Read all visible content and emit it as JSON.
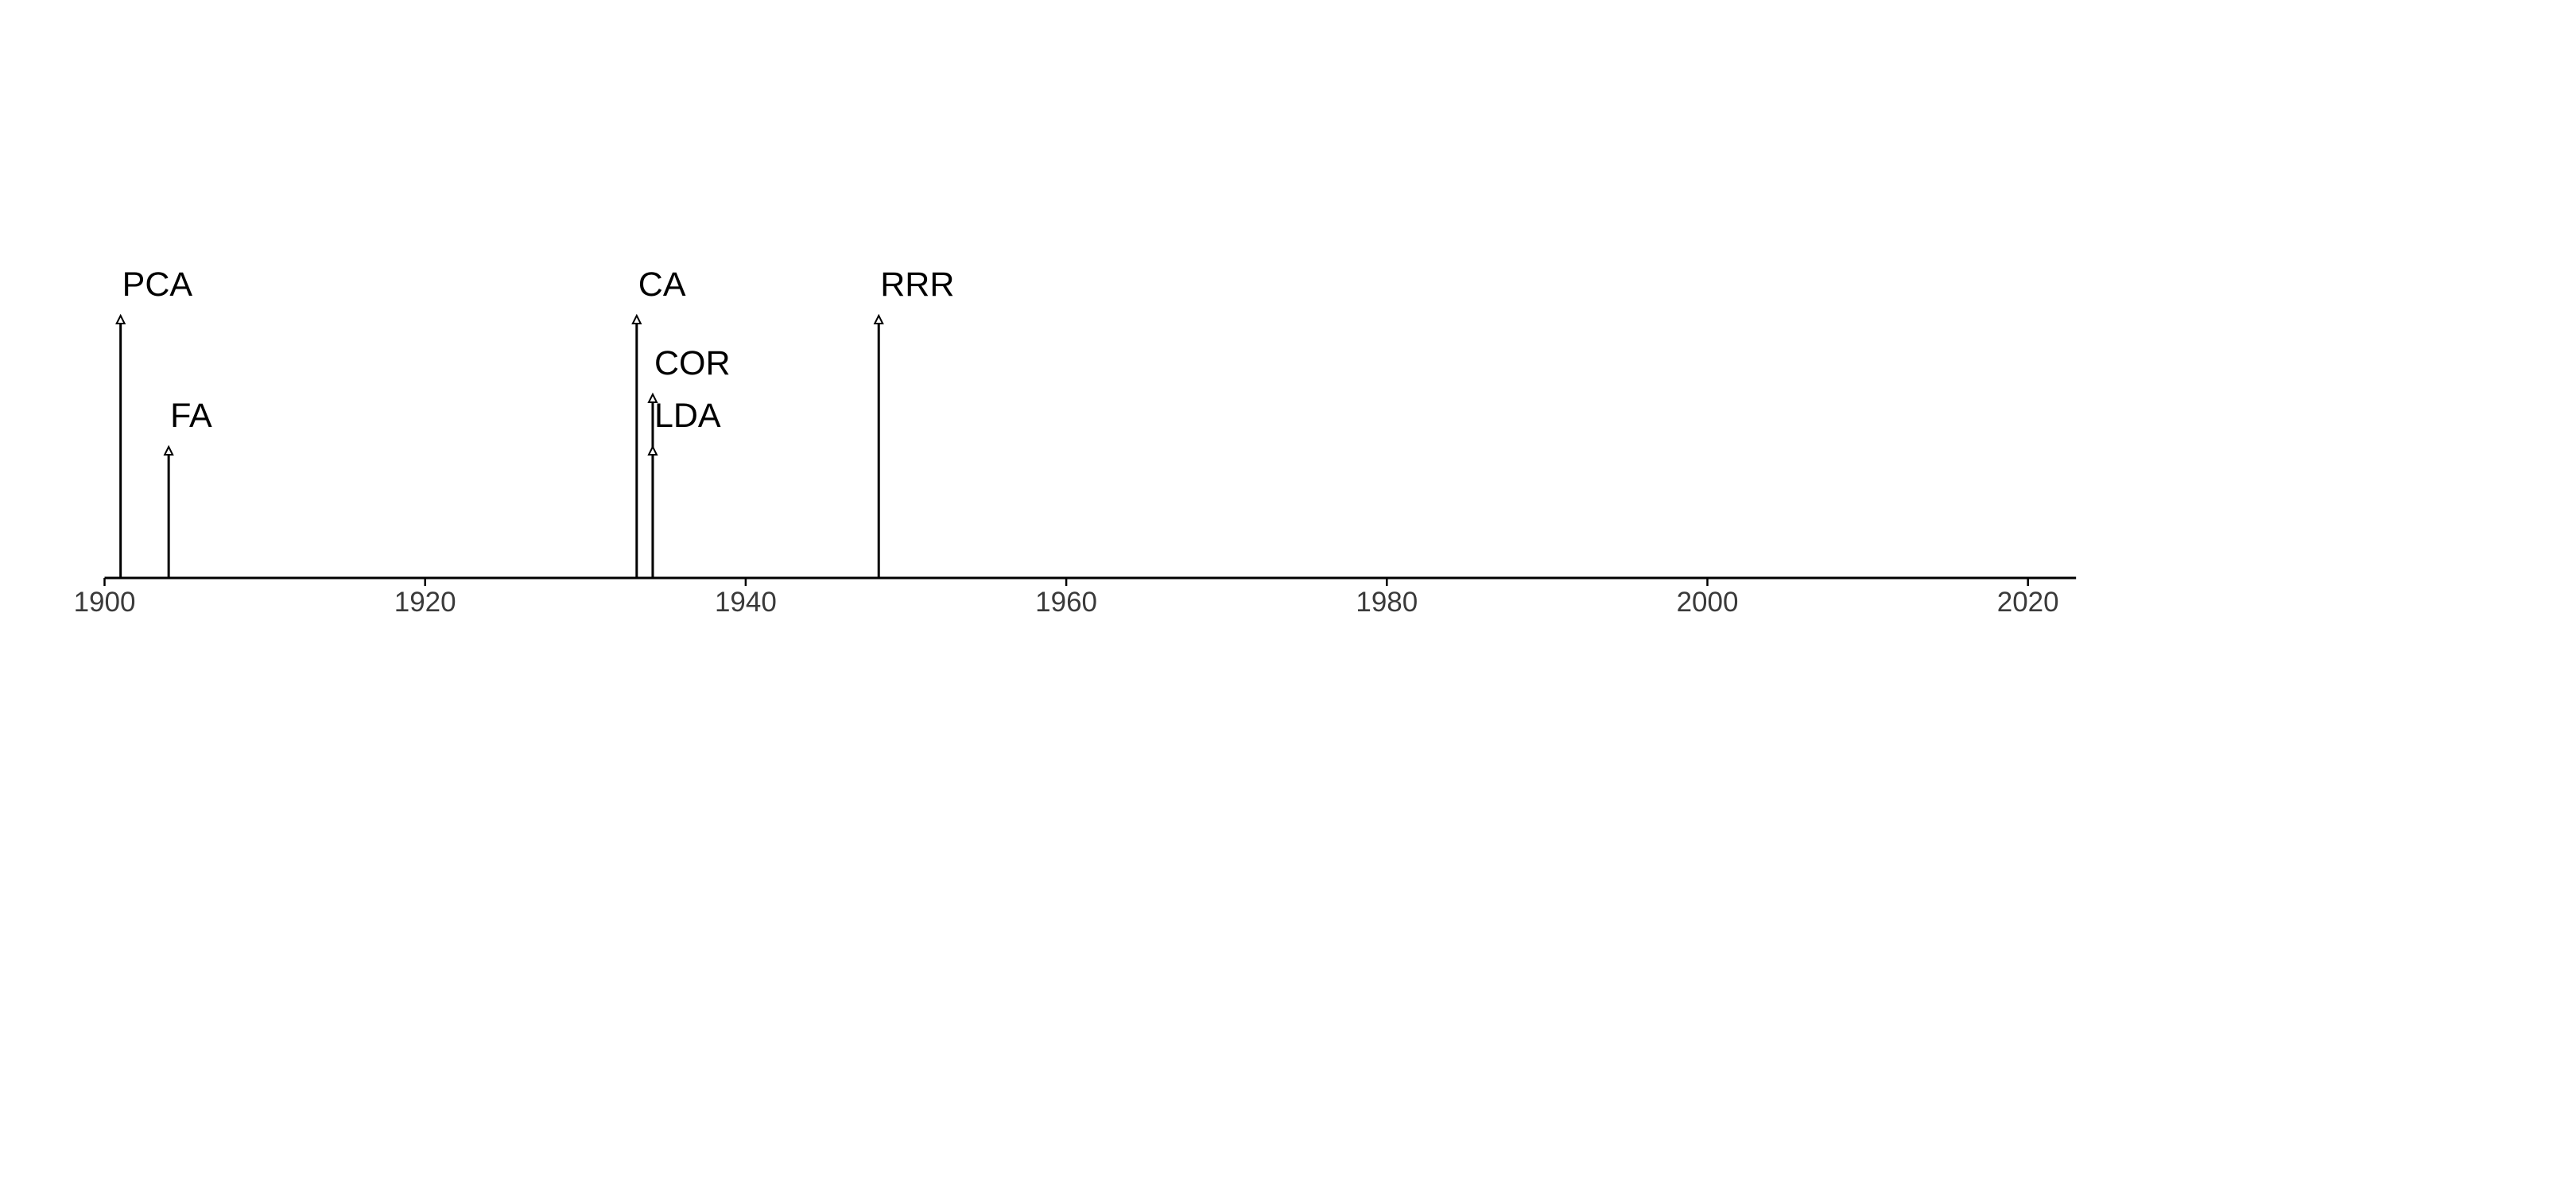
{
  "chart_data": {
    "type": "timeline",
    "title": "",
    "xlabel": "",
    "ylabel": "",
    "xlim": [
      1900,
      2023
    ],
    "x_ticks": [
      1900,
      1920,
      1940,
      1960,
      1980,
      2000,
      2020
    ],
    "grid": false,
    "legend": "none",
    "line_color": "#000000",
    "events": [
      {
        "label": "PCA",
        "year": 1901,
        "level": 2
      },
      {
        "label": "FA",
        "year": 1904,
        "level": 1
      },
      {
        "label": "CA",
        "year": 1933.2,
        "level": 2
      },
      {
        "label": "COR",
        "year": 1934.2,
        "level": 1.4
      },
      {
        "label": "LDA",
        "year": 1934.2,
        "level": 1
      },
      {
        "label": "RRR",
        "year": 1948.3,
        "level": 2
      }
    ]
  }
}
